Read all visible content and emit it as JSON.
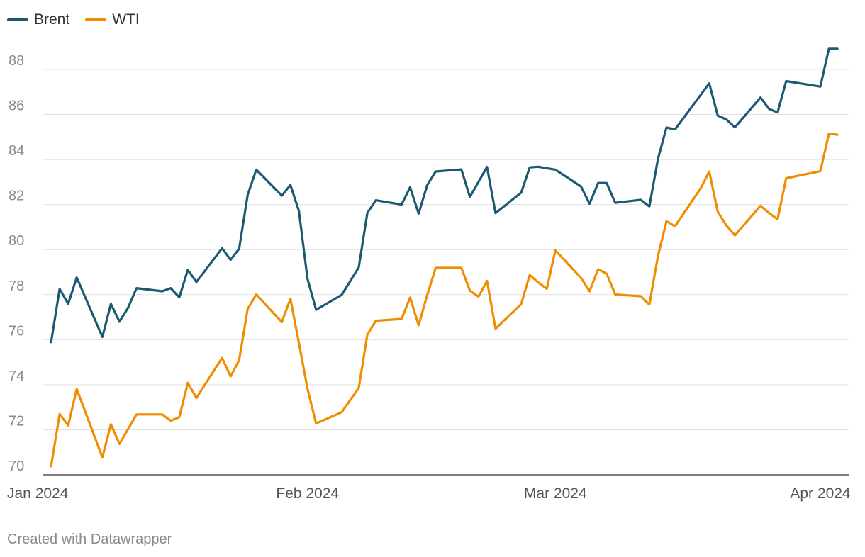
{
  "chart_data": {
    "type": "line",
    "title": "",
    "xlabel": "",
    "ylabel": "",
    "x_range": [
      "2024-01-01",
      "2024-04-03"
    ],
    "ylim": [
      70,
      89.5
    ],
    "y_ticks": [
      70,
      72,
      74,
      76,
      78,
      80,
      82,
      84,
      86,
      88
    ],
    "x_ticks": [
      {
        "date": "2024-01-01",
        "label": "Jan 2024"
      },
      {
        "date": "2024-02-01",
        "label": "Feb 2024"
      },
      {
        "date": "2024-03-01",
        "label": "Mar 2024"
      },
      {
        "date": "2024-04-01",
        "label": "Apr 2024"
      }
    ],
    "grid": true,
    "legend_position": "top-left",
    "series": [
      {
        "name": "Brent",
        "color": "#1c5a72",
        "points": [
          [
            "2024-01-02",
            75.89
          ],
          [
            "2024-01-03",
            78.25
          ],
          [
            "2024-01-04",
            77.59
          ],
          [
            "2024-01-05",
            78.76
          ],
          [
            "2024-01-08",
            76.12
          ],
          [
            "2024-01-09",
            77.59
          ],
          [
            "2024-01-10",
            76.8
          ],
          [
            "2024-01-11",
            77.41
          ],
          [
            "2024-01-12",
            78.29
          ],
          [
            "2024-01-15",
            78.15
          ],
          [
            "2024-01-16",
            78.29
          ],
          [
            "2024-01-17",
            77.88
          ],
          [
            "2024-01-18",
            79.1
          ],
          [
            "2024-01-19",
            78.56
          ],
          [
            "2024-01-22",
            80.06
          ],
          [
            "2024-01-23",
            79.55
          ],
          [
            "2024-01-24",
            80.04
          ],
          [
            "2024-01-25",
            82.43
          ],
          [
            "2024-01-26",
            83.55
          ],
          [
            "2024-01-29",
            82.4
          ],
          [
            "2024-01-30",
            82.87
          ],
          [
            "2024-01-31",
            81.71
          ],
          [
            "2024-02-01",
            78.7
          ],
          [
            "2024-02-02",
            77.33
          ],
          [
            "2024-02-05",
            77.99
          ],
          [
            "2024-02-07",
            79.21
          ],
          [
            "2024-02-08",
            81.63
          ],
          [
            "2024-02-09",
            82.19
          ],
          [
            "2024-02-12",
            82.0
          ],
          [
            "2024-02-13",
            82.77
          ],
          [
            "2024-02-14",
            81.6
          ],
          [
            "2024-02-15",
            82.86
          ],
          [
            "2024-02-16",
            83.47
          ],
          [
            "2024-02-19",
            83.56
          ],
          [
            "2024-02-20",
            82.34
          ],
          [
            "2024-02-22",
            83.67
          ],
          [
            "2024-02-23",
            81.62
          ],
          [
            "2024-02-26",
            82.53
          ],
          [
            "2024-02-27",
            83.65
          ],
          [
            "2024-02-28",
            83.68
          ],
          [
            "2024-03-01",
            83.55
          ],
          [
            "2024-03-04",
            82.8
          ],
          [
            "2024-03-05",
            82.04
          ],
          [
            "2024-03-06",
            82.96
          ],
          [
            "2024-03-07",
            82.96
          ],
          [
            "2024-03-08",
            82.08
          ],
          [
            "2024-03-11",
            82.21
          ],
          [
            "2024-03-12",
            81.92
          ],
          [
            "2024-03-13",
            84.03
          ],
          [
            "2024-03-14",
            85.42
          ],
          [
            "2024-03-15",
            85.34
          ],
          [
            "2024-03-19",
            87.38
          ],
          [
            "2024-03-20",
            85.95
          ],
          [
            "2024-03-21",
            85.78
          ],
          [
            "2024-03-22",
            85.43
          ],
          [
            "2024-03-25",
            86.75
          ],
          [
            "2024-03-26",
            86.25
          ],
          [
            "2024-03-27",
            86.09
          ],
          [
            "2024-03-28",
            87.48
          ],
          [
            "2024-04-01",
            87.24
          ],
          [
            "2024-04-02",
            88.92
          ],
          [
            "2024-04-03",
            88.92
          ]
        ]
      },
      {
        "name": "WTI",
        "color": "#f08c00",
        "points": [
          [
            "2024-01-02",
            70.38
          ],
          [
            "2024-01-03",
            72.7
          ],
          [
            "2024-01-04",
            72.19
          ],
          [
            "2024-01-05",
            73.81
          ],
          [
            "2024-01-08",
            70.77
          ],
          [
            "2024-01-09",
            72.24
          ],
          [
            "2024-01-10",
            71.37
          ],
          [
            "2024-01-12",
            72.68
          ],
          [
            "2024-01-15",
            72.68
          ],
          [
            "2024-01-16",
            72.4
          ],
          [
            "2024-01-17",
            72.56
          ],
          [
            "2024-01-18",
            74.08
          ],
          [
            "2024-01-19",
            73.41
          ],
          [
            "2024-01-22",
            75.19
          ],
          [
            "2024-01-23",
            74.37
          ],
          [
            "2024-01-24",
            75.09
          ],
          [
            "2024-01-25",
            77.36
          ],
          [
            "2024-01-26",
            78.01
          ],
          [
            "2024-01-29",
            76.78
          ],
          [
            "2024-01-30",
            77.82
          ],
          [
            "2024-01-31",
            75.85
          ],
          [
            "2024-02-01",
            73.82
          ],
          [
            "2024-02-02",
            72.28
          ],
          [
            "2024-02-05",
            72.78
          ],
          [
            "2024-02-07",
            73.86
          ],
          [
            "2024-02-08",
            76.22
          ],
          [
            "2024-02-09",
            76.84
          ],
          [
            "2024-02-12",
            76.92
          ],
          [
            "2024-02-13",
            77.87
          ],
          [
            "2024-02-14",
            76.64
          ],
          [
            "2024-02-15",
            77.98
          ],
          [
            "2024-02-16",
            79.19
          ],
          [
            "2024-02-19",
            79.19
          ],
          [
            "2024-02-20",
            78.18
          ],
          [
            "2024-02-21",
            77.91
          ],
          [
            "2024-02-22",
            78.61
          ],
          [
            "2024-02-23",
            76.49
          ],
          [
            "2024-02-26",
            77.58
          ],
          [
            "2024-02-27",
            78.87
          ],
          [
            "2024-02-28",
            78.54
          ],
          [
            "2024-02-29",
            78.26
          ],
          [
            "2024-03-01",
            79.97
          ],
          [
            "2024-03-04",
            78.74
          ],
          [
            "2024-03-05",
            78.15
          ],
          [
            "2024-03-06",
            79.13
          ],
          [
            "2024-03-07",
            78.93
          ],
          [
            "2024-03-08",
            78.01
          ],
          [
            "2024-03-11",
            77.93
          ],
          [
            "2024-03-12",
            77.56
          ],
          [
            "2024-03-13",
            79.72
          ],
          [
            "2024-03-14",
            81.26
          ],
          [
            "2024-03-15",
            81.04
          ],
          [
            "2024-03-18",
            82.72
          ],
          [
            "2024-03-19",
            83.47
          ],
          [
            "2024-03-20",
            81.68
          ],
          [
            "2024-03-21",
            81.07
          ],
          [
            "2024-03-22",
            80.63
          ],
          [
            "2024-03-25",
            81.95
          ],
          [
            "2024-03-26",
            81.62
          ],
          [
            "2024-03-27",
            81.35
          ],
          [
            "2024-03-28",
            83.17
          ],
          [
            "2024-04-01",
            83.48
          ],
          [
            "2024-04-02",
            85.15
          ],
          [
            "2024-04-03",
            85.1
          ]
        ]
      }
    ]
  },
  "footer": {
    "credit": "Created with Datawrapper"
  }
}
